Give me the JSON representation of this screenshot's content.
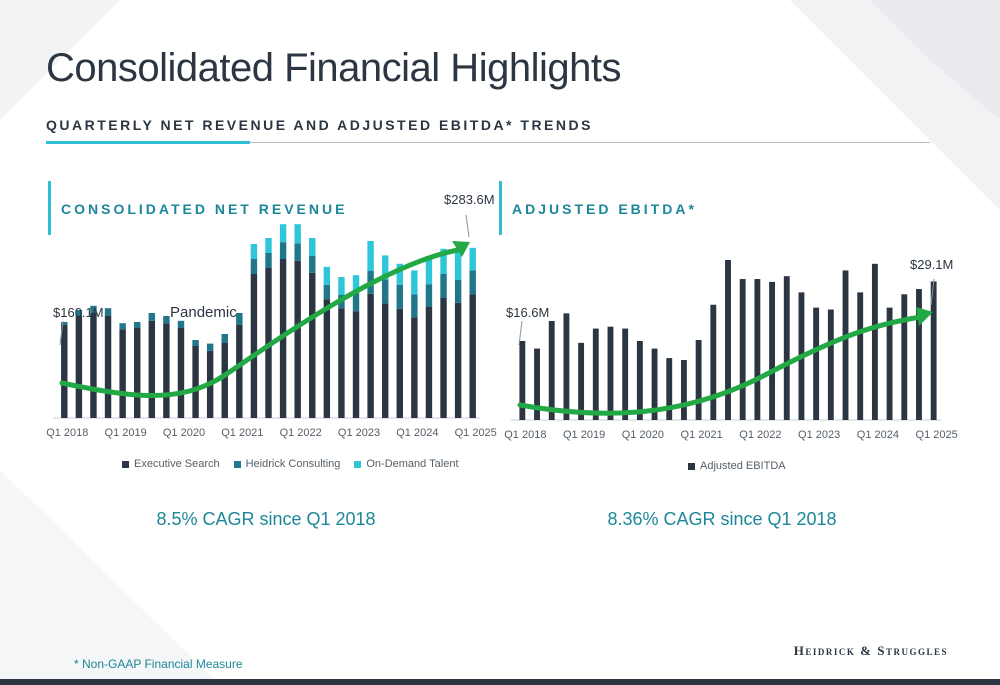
{
  "page": {
    "title": "Consolidated Financial Highlights",
    "subtitle": "QUARTERLY NET REVENUE AND ADJUSTED EBITDA* TRENDS",
    "footnote": "* Non-GAAP Financial Measure",
    "logo": "Heidrick & Struggles"
  },
  "colors": {
    "executive_search": "#2b3642",
    "heidrick_consulting": "#21768a",
    "on_demand_talent": "#2fc6da",
    "ebitda": "#2b3642",
    "trend_arrow": "#22a845",
    "accent": "#2fbfd3",
    "teal_text": "#1b8798"
  },
  "chart_data": [
    {
      "type": "bar",
      "stacked": true,
      "title": "CONSOLIDATED NET REVENUE",
      "categories": [
        "Q1 2018",
        "Q2 2018",
        "Q3 2018",
        "Q4 2018",
        "Q1 2019",
        "Q2 2019",
        "Q3 2019",
        "Q4 2019",
        "Q1 2020",
        "Q2 2020",
        "Q3 2020",
        "Q4 2020",
        "Q1 2021",
        "Q2 2021",
        "Q3 2021",
        "Q4 2021",
        "Q1 2022",
        "Q2 2022",
        "Q3 2022",
        "Q4 2022",
        "Q1 2023",
        "Q2 2023",
        "Q3 2023",
        "Q4 2023",
        "Q1 2024",
        "Q2 2024",
        "Q3 2024",
        "Q4 2024",
        "Q1 2025"
      ],
      "x_tick_labels": [
        "Q1 2018",
        "Q1 2019",
        "Q1 2020",
        "Q1 2021",
        "Q1 2022",
        "Q1 2023",
        "Q1 2024",
        "Q1 2025"
      ],
      "series": [
        {
          "name": "Executive Search",
          "values": [
            155,
            170,
            175,
            170,
            148,
            150,
            162,
            158,
            150,
            120,
            112,
            125,
            155,
            240,
            250,
            265,
            262,
            242,
            198,
            183,
            178,
            207,
            191,
            182,
            168,
            185,
            200,
            192,
            206
          ]
        },
        {
          "name": "Heidrick Consulting",
          "values": [
            5,
            10,
            12,
            13,
            10,
            10,
            13,
            12,
            12,
            10,
            12,
            15,
            20,
            25,
            25,
            28,
            29,
            28,
            24,
            22,
            30,
            38,
            40,
            40,
            38,
            38,
            40,
            38,
            40
          ]
        },
        {
          "name": "On-Demand Talent",
          "values": [
            0,
            0,
            0,
            0,
            0,
            0,
            0,
            0,
            0,
            0,
            0,
            0,
            0,
            25,
            25,
            30,
            32,
            30,
            30,
            30,
            30,
            50,
            40,
            35,
            40,
            47,
            42,
            47,
            37.6
          ]
        }
      ],
      "ylim": [
        0,
        330
      ],
      "annotations": {
        "start_label": "$160.1M",
        "end_label": "$283.6M",
        "event_label": "Pandemic"
      },
      "legend": "bottom",
      "cagr_text": "8.5% CAGR since Q1 2018"
    },
    {
      "type": "bar",
      "title": "ADJUSTED EBITDA*",
      "categories": [
        "Q1 2018",
        "Q2 2018",
        "Q3 2018",
        "Q4 2018",
        "Q1 2019",
        "Q2 2019",
        "Q3 2019",
        "Q4 2019",
        "Q1 2020",
        "Q2 2020",
        "Q3 2020",
        "Q4 2020",
        "Q1 2021",
        "Q2 2021",
        "Q3 2021",
        "Q4 2021",
        "Q1 2022",
        "Q2 2022",
        "Q3 2022",
        "Q4 2022",
        "Q1 2023",
        "Q2 2023",
        "Q3 2023",
        "Q4 2023",
        "Q1 2024",
        "Q2 2024",
        "Q3 2024",
        "Q4 2024",
        "Q1 2025"
      ],
      "x_tick_labels": [
        "Q1 2018",
        "Q1 2019",
        "Q1 2020",
        "Q1 2021",
        "Q1 2022",
        "Q1 2023",
        "Q1 2024",
        "Q1 2025"
      ],
      "series": [
        {
          "name": "Adjusted EBITDA",
          "values": [
            16.6,
            15.0,
            20.8,
            22.4,
            16.2,
            19.2,
            19.6,
            19.2,
            16.6,
            15.0,
            13.0,
            12.6,
            16.8,
            24.2,
            33.6,
            29.6,
            29.6,
            29.0,
            30.2,
            26.8,
            23.6,
            23.2,
            31.4,
            26.8,
            32.8,
            23.6,
            26.4,
            27.5,
            29.1
          ]
        }
      ],
      "ylim": [
        0,
        42
      ],
      "annotations": {
        "start_label": "$16.6M",
        "end_label": "$29.1M"
      },
      "legend": "bottom",
      "cagr_text": "8.36% CAGR since Q1 2018"
    }
  ]
}
